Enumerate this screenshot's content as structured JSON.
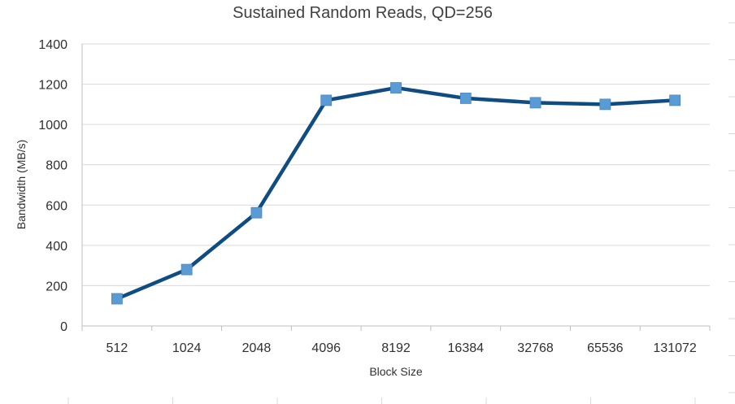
{
  "chart_data": {
    "type": "line",
    "title": "Sustained Random Reads, QD=256",
    "xlabel": "Block Size",
    "ylabel": "Bandwidth (MB/s)",
    "categories": [
      "512",
      "1024",
      "2048",
      "4096",
      "8192",
      "16384",
      "32768",
      "65536",
      "131072"
    ],
    "series": [
      {
        "values": [
          135,
          280,
          562,
          1120,
          1182,
          1130,
          1108,
          1100,
          1120
        ],
        "line_color": "#0F4C81",
        "marker_color": "#5B9BD5"
      }
    ],
    "ylim": [
      0,
      1400
    ],
    "yticks": [
      0,
      200,
      400,
      600,
      800,
      1000,
      1200,
      1400
    ],
    "grid": true,
    "legend": "none"
  }
}
